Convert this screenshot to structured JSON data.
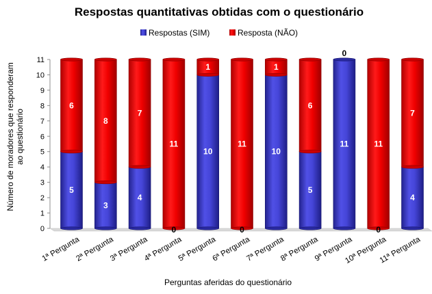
{
  "chart_data": {
    "type": "bar",
    "stacked": true,
    "title": "Respostas quantitativas obtidas com o questionário",
    "xlabel": "Perguntas aferidas do questionário",
    "ylabel": "Número de moradores que responderam ao questionário",
    "ylim": [
      0,
      11
    ],
    "yticks": [
      0,
      1,
      2,
      3,
      4,
      5,
      6,
      7,
      8,
      9,
      10,
      11
    ],
    "grid": false,
    "legend_position": "top",
    "categories": [
      "1ª Pergunta",
      "2ª Pergunta",
      "3ª Pergunta",
      "4ª Pergunta",
      "5ª Pergunta",
      "6ª Pergunta",
      "7ª Pergunta",
      "8ª Pergunta",
      "9ª Pergunta",
      "10ª Pergunta",
      "11ª Pergunta"
    ],
    "series": [
      {
        "name": "Respostas (SIM)",
        "color": "#3f3fc0",
        "values": [
          5,
          3,
          4,
          0,
          10,
          0,
          10,
          5,
          11,
          0,
          4
        ]
      },
      {
        "name": "Resposta (NÃO)",
        "color": "#ff0000",
        "values": [
          6,
          8,
          7,
          11,
          1,
          11,
          1,
          6,
          0,
          11,
          7
        ]
      }
    ]
  }
}
